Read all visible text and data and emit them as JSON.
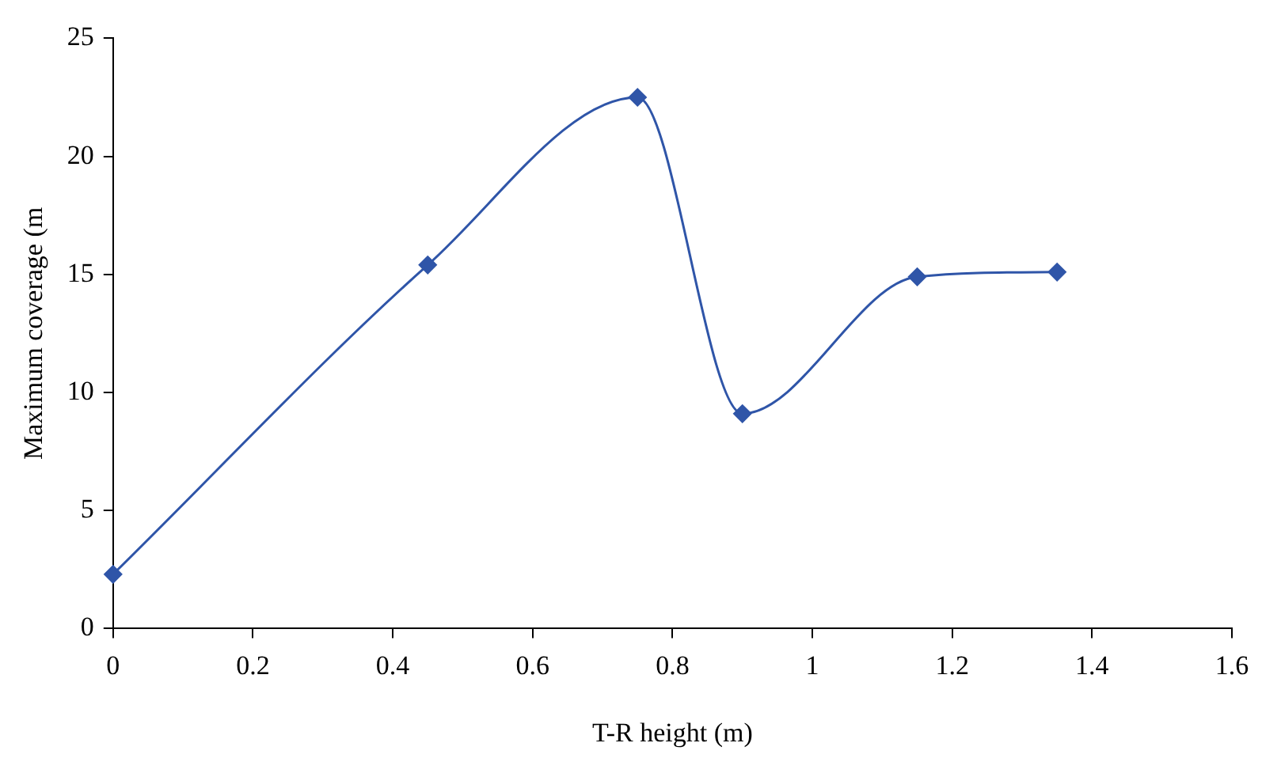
{
  "chart_data": {
    "type": "line",
    "xlabel": "T-R height (m)",
    "ylabel": "Maximum coverage (m",
    "x": [
      0,
      0.45,
      0.75,
      0.9,
      1.15,
      1.35
    ],
    "series": [
      {
        "color": "#2f55a8",
        "values": [
          2.3,
          15.4,
          22.5,
          9.1,
          14.9,
          15.1
        ]
      }
    ],
    "xlim": [
      0,
      1.6
    ],
    "xticks": [
      0,
      0.2,
      0.4,
      0.6,
      0.8,
      1,
      1.2,
      1.4,
      1.6
    ],
    "ylim": [
      0,
      25
    ],
    "yticks": [
      0,
      5,
      10,
      15,
      20,
      25
    ],
    "grid": false,
    "legend": false,
    "marker": "diamond",
    "line_style": "solid"
  }
}
